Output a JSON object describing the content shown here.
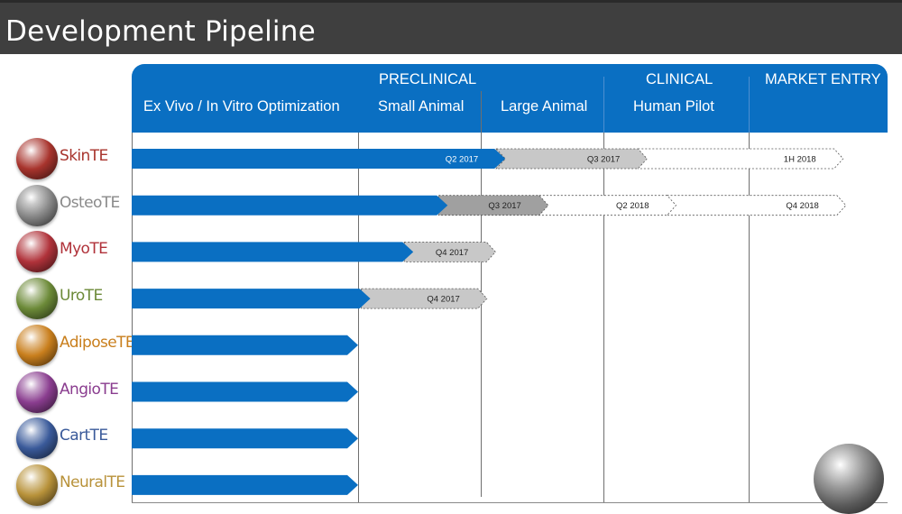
{
  "page_title": "Development Pipeline",
  "chart_data": {
    "type": "gantt",
    "title": "Development Pipeline",
    "phases": [
      {
        "label": "PRECLINICAL"
      },
      {
        "label": "CLINICAL"
      },
      {
        "label": "MARKET ENTRY"
      }
    ],
    "stages": [
      "Ex Vivo / In Vitro Optimization",
      "Small Animal",
      "Large Animal",
      "Human Pilot",
      "Market Entry"
    ],
    "stage_units_note": "progress values are in stage units: 0 = start of Ex Vivo, 1 = start of Small Animal, 2 = start of Large Animal, 3 = start of Human Pilot, 4 = start of Market Entry, 5 = end of chart",
    "products": [
      {
        "name": "SkinTE",
        "color": "#a8342d",
        "progress": 2.2,
        "milestones": [
          {
            "label": "Q2 2017",
            "end": 2.2,
            "style": "solid"
          },
          {
            "label": "Q3 2017",
            "end": 3.3,
            "style": "gray"
          },
          {
            "label": "1H 2018",
            "end": 4.68,
            "style": "dashed"
          }
        ]
      },
      {
        "name": "OsteoTE",
        "color": "#8a8a8a",
        "progress": 1.73,
        "milestones": [
          {
            "label": "Q3 2017",
            "end": 2.55,
            "style": "darkgray"
          },
          {
            "label": "Q2 2018",
            "end": 3.5,
            "style": "dashed"
          },
          {
            "label": "Q4 2018",
            "end": 4.7,
            "style": "dashed"
          }
        ]
      },
      {
        "name": "MyoTE",
        "color": "#b0323a",
        "progress": 1.45,
        "milestones": [
          {
            "label": "Q4 2017",
            "end": 2.12,
            "style": "gray"
          }
        ]
      },
      {
        "name": "UroTE",
        "color": "#6c8a38",
        "progress": 1.1,
        "milestones": [
          {
            "label": "Q4 2017",
            "end": 2.05,
            "style": "gray"
          }
        ]
      },
      {
        "name": "AdiposeTE",
        "color": "#c97f1d",
        "progress": 1.0,
        "milestones": []
      },
      {
        "name": "AngioTE",
        "color": "#8a3d8f",
        "progress": 1.0,
        "milestones": []
      },
      {
        "name": "CartTE",
        "color": "#3a5a9a",
        "progress": 1.0,
        "milestones": []
      },
      {
        "name": "NeuralTE",
        "color": "#b8923a",
        "progress": 1.0,
        "milestones": []
      }
    ],
    "colors": {
      "header_blue": "#0a6fc2",
      "bar_blue": "#0a6fc2",
      "gray_milestone": "#c8c8c8",
      "darkgray_milestone": "#a0a0a0"
    }
  }
}
